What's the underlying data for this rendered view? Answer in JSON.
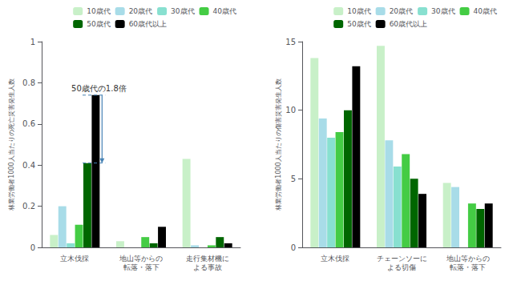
{
  "chart_data": [
    {
      "type": "bar",
      "categories": [
        "立木伐採",
        "地山等からの\n転落・落下",
        "走行集材機に\nよる事故"
      ],
      "series": [
        {
          "name": "10歳代",
          "color": "#c8f0c8",
          "values": [
            0.06,
            0.03,
            0.43
          ]
        },
        {
          "name": "20歳代",
          "color": "#a8dce8",
          "values": [
            0.2,
            0,
            0.01
          ]
        },
        {
          "name": "30歳代",
          "color": "#88e0d0",
          "values": [
            0.02,
            0,
            0
          ]
        },
        {
          "name": "40歳代",
          "color": "#44cc44",
          "values": [
            0.11,
            0.05,
            0.01
          ]
        },
        {
          "name": "50歳代",
          "color": "#006600",
          "values": [
            0.41,
            0.02,
            0.05
          ]
        },
        {
          "name": "60歳代以上",
          "color": "#000000",
          "values": [
            0.74,
            0.1,
            0.02
          ]
        }
      ],
      "ylabel": "林業労働者1000人当たりの死亡災害発生人数",
      "ylim": [
        0,
        1
      ],
      "yticks": [
        0,
        0.2,
        0.4,
        0.6,
        0.8,
        1
      ],
      "legend": "upper right",
      "grid": false,
      "annotation": {
        "text": "50歳代の1.8倍",
        "from": 0.74,
        "to": 0.41
      }
    },
    {
      "type": "bar",
      "categories": [
        "立木伐採",
        "チェーンソーに\nよる切傷",
        "地山等からの\n転落・落下"
      ],
      "series": [
        {
          "name": "10歳代",
          "color": "#c8f0c8",
          "values": [
            13.8,
            14.7,
            4.7
          ]
        },
        {
          "name": "20歳代",
          "color": "#a8dce8",
          "values": [
            9.4,
            7.8,
            4.4
          ]
        },
        {
          "name": "30歳代",
          "color": "#88e0d0",
          "values": [
            8.0,
            5.9,
            0.0
          ]
        },
        {
          "name": "40歳代",
          "color": "#44cc44",
          "values": [
            8.4,
            6.8,
            3.2
          ]
        },
        {
          "name": "50歳代",
          "color": "#006600",
          "values": [
            10.0,
            5.0,
            2.8
          ]
        },
        {
          "name": "60歳代以上",
          "color": "#000000",
          "values": [
            13.2,
            3.9,
            3.2
          ]
        }
      ],
      "ylabel": "林業労働者1000人当たりの傷害災害発生人数",
      "ylim": [
        0,
        15
      ],
      "yticks": [
        0,
        5,
        10,
        15
      ],
      "legend": "upper right",
      "grid": false
    }
  ]
}
